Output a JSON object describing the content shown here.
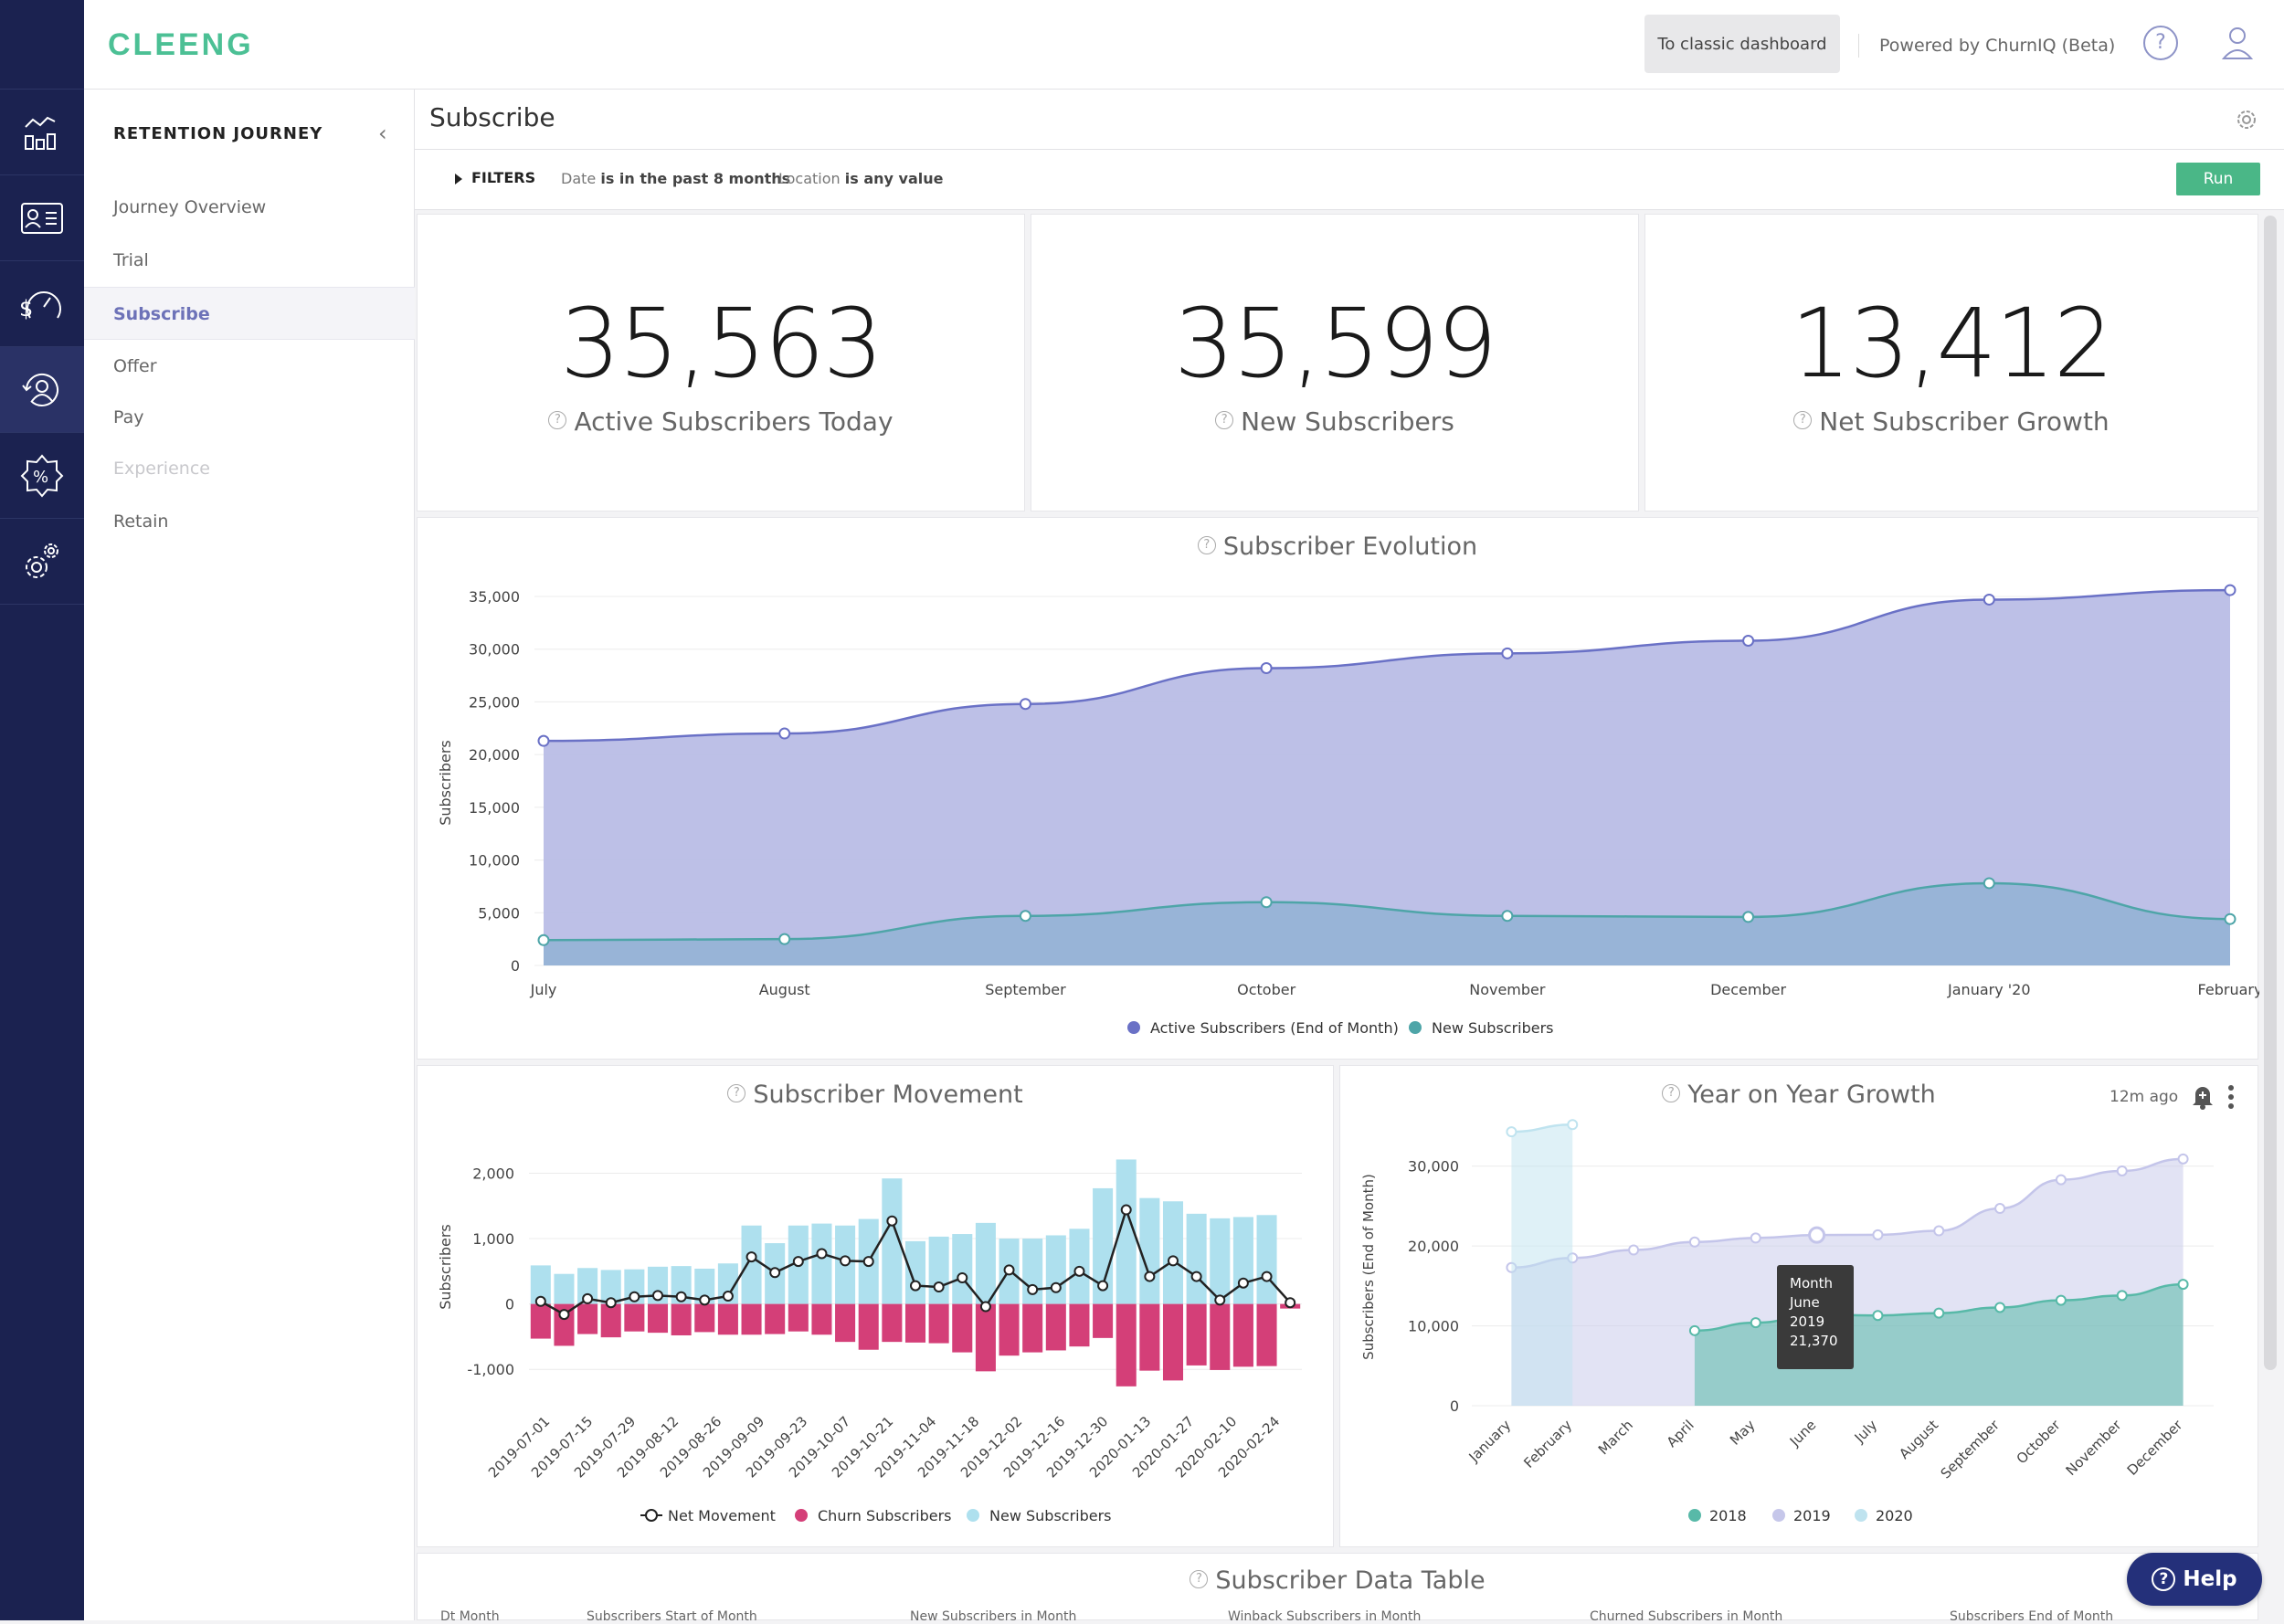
{
  "brand": "CLEENG",
  "topbar": {
    "classic_button": "To classic dashboard",
    "powered_by": "Powered by ChurnIQ (Beta)",
    "help": "?"
  },
  "rail": {
    "icons": [
      "analytics-icon",
      "subscriber-card-icon",
      "revenue-gauge-icon",
      "retention-user-icon",
      "discount-badge-icon",
      "settings-cog-icon"
    ],
    "active_index": 3
  },
  "sidenav": {
    "heading": "RETENTION JOURNEY",
    "collapse": "‹",
    "items": [
      {
        "label": "Journey Overview",
        "state": "normal"
      },
      {
        "label": "Trial",
        "state": "normal"
      },
      {
        "label": "Subscribe",
        "state": "active"
      },
      {
        "label": "Offer",
        "state": "normal"
      },
      {
        "label": "Pay",
        "state": "normal"
      },
      {
        "label": "Experience",
        "state": "disabled"
      },
      {
        "label": "Retain",
        "state": "normal"
      }
    ]
  },
  "page": {
    "title": "Subscribe"
  },
  "filters": {
    "label": "FILTERS",
    "date_field": "Date",
    "date_value": "is in the past 8 months",
    "location_field": "Location",
    "location_value": "is any value",
    "run": "Run"
  },
  "kpis": [
    {
      "value": "35,563",
      "label": "Active Subscribers Today"
    },
    {
      "value": "35,599",
      "label": "New Subscribers"
    },
    {
      "value": "13,412",
      "label": "Net Subscriber Growth"
    }
  ],
  "colors": {
    "active": "#6a71c6",
    "active_fill": "#b9bde6",
    "new": "#4ea5a8",
    "new_fill": "#8fb0d3",
    "churn": "#d43f78",
    "new_bar": "#aee0ee",
    "y2018": "#58b9a8",
    "y2019": "#c6c7ea",
    "y2020": "#bfe3ef",
    "run": "#4ab787",
    "rail": "#1b2250"
  },
  "evolution_title": "Subscriber Evolution",
  "movement_title": "Subscriber Movement",
  "yoy": {
    "title": "Year on Year Growth",
    "age": "12m ago"
  },
  "tooltip": {
    "title": "Month",
    "month": "June",
    "year": "2019",
    "value": "21,370"
  },
  "table": {
    "title": "Subscriber Data Table",
    "columns": [
      "Dt Month",
      "Subscribers Start of Month",
      "New Subscribers in Month",
      "Winback Subscribers in Month",
      "Churned Subscribers in Month",
      "Subscribers End of Month"
    ]
  },
  "help_button": "Help",
  "chart_data": [
    {
      "type": "area",
      "title": "Subscriber Evolution",
      "xlabel": "",
      "ylabel": "Subscribers",
      "categories": [
        "July",
        "August",
        "September",
        "October",
        "November",
        "December",
        "January '20",
        "February"
      ],
      "ylim": [
        0,
        35000
      ],
      "yticks": [
        0,
        5000,
        10000,
        15000,
        20000,
        25000,
        30000,
        35000
      ],
      "ytick_labels": [
        "0",
        "5,000",
        "10,000",
        "15,000",
        "20,000",
        "25,000",
        "30,000",
        "35,000"
      ],
      "series": [
        {
          "name": "Active Subscribers (End of Month)",
          "values": [
            21300,
            22000,
            24800,
            28200,
            29600,
            30800,
            34700,
            35600
          ]
        },
        {
          "name": "New Subscribers",
          "values": [
            2400,
            2500,
            4700,
            6000,
            4700,
            4600,
            7800,
            4400
          ]
        }
      ],
      "legend": "bottom"
    },
    {
      "type": "bar",
      "title": "Subscriber Movement",
      "ylabel": "Subscribers",
      "ylim": [
        -1500,
        2300
      ],
      "yticks": [
        -1000,
        0,
        1000,
        2000
      ],
      "ytick_labels": [
        "-1,000",
        "0",
        "1,000",
        "2,000"
      ],
      "x_tick_labels": [
        "2019-07-01",
        "2019-07-15",
        "2019-07-29",
        "2019-08-12",
        "2019-08-26",
        "2019-09-09",
        "2019-09-23",
        "2019-10-07",
        "2019-10-21",
        "2019-11-04",
        "2019-11-18",
        "2019-12-02",
        "2019-12-16",
        "2019-12-30",
        "2020-01-13",
        "2020-01-27",
        "2020-02-10",
        "2020-02-24"
      ],
      "series": [
        {
          "name": "New Subscribers",
          "values": [
            590,
            460,
            550,
            520,
            530,
            570,
            580,
            540,
            620,
            1200,
            930,
            1200,
            1230,
            1200,
            1300,
            1920,
            960,
            1030,
            1070,
            1240,
            1000,
            1000,
            1050,
            1150,
            1770,
            2210,
            1620,
            1570,
            1380,
            1310,
            1330,
            1360,
            0
          ]
        },
        {
          "name": "Churn Subscribers",
          "values": [
            -530,
            -640,
            -460,
            -510,
            -420,
            -440,
            -480,
            -430,
            -470,
            -470,
            -460,
            -420,
            -470,
            -580,
            -700,
            -580,
            -590,
            -600,
            -740,
            -1030,
            -790,
            -740,
            -710,
            -650,
            -520,
            -1260,
            -1020,
            -1170,
            -940,
            -1010,
            -960,
            -950,
            -70
          ]
        },
        {
          "name": "Net Movement",
          "values": [
            40,
            -160,
            80,
            20,
            110,
            130,
            110,
            60,
            120,
            720,
            480,
            650,
            770,
            660,
            650,
            1270,
            280,
            260,
            400,
            -40,
            520,
            220,
            250,
            500,
            280,
            1440,
            420,
            660,
            420,
            60,
            320,
            420,
            20
          ]
        }
      ],
      "legend": "bottom"
    },
    {
      "type": "area",
      "title": "Year on Year Growth",
      "ylabel": "Subscribers (End of Month)",
      "categories": [
        "January",
        "February",
        "March",
        "April",
        "May",
        "June",
        "July",
        "August",
        "September",
        "October",
        "November",
        "December"
      ],
      "ylim": [
        0,
        35000
      ],
      "yticks": [
        0,
        10000,
        20000,
        30000
      ],
      "ytick_labels": [
        "0",
        "10,000",
        "20,000",
        "30,000"
      ],
      "series": [
        {
          "name": "2018",
          "values": [
            null,
            null,
            null,
            9400,
            10400,
            11400,
            11300,
            11600,
            12300,
            13200,
            13800,
            15200
          ]
        },
        {
          "name": "2019",
          "values": [
            17300,
            18500,
            19500,
            20500,
            21000,
            21370,
            21400,
            21900,
            24700,
            28300,
            29400,
            30900
          ]
        },
        {
          "name": "2020",
          "values": [
            34300,
            35200,
            null,
            null,
            null,
            null,
            null,
            null,
            null,
            null,
            null,
            null
          ]
        }
      ],
      "legend": "bottom"
    }
  ]
}
